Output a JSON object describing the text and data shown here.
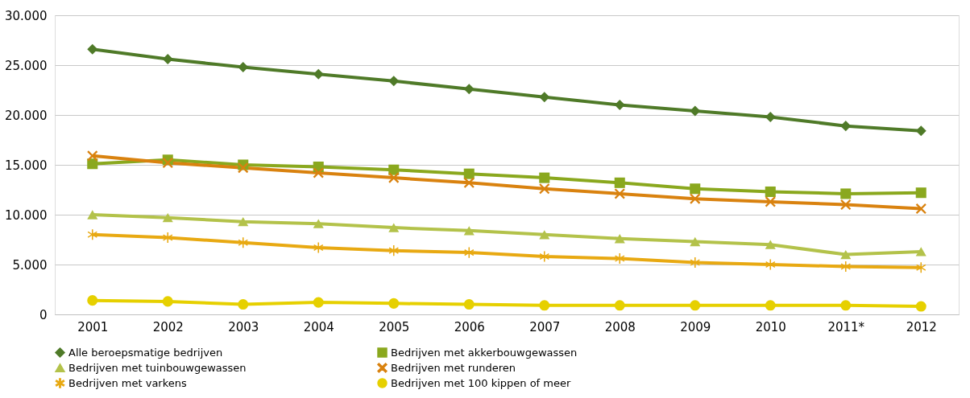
{
  "chart_data": {
    "type": "line",
    "categories": [
      "2001",
      "2002",
      "2003",
      "2004",
      "2005",
      "2006",
      "2007",
      "2008",
      "2009",
      "2010",
      "2011*",
      "2012"
    ],
    "ylim": [
      0,
      30000
    ],
    "yticks": [
      {
        "value": 0,
        "label": "0"
      },
      {
        "value": 5000,
        "label": "5.000"
      },
      {
        "value": 10000,
        "label": "10.000"
      },
      {
        "value": 15000,
        "label": "15.000"
      },
      {
        "value": 20000,
        "label": "20.000"
      },
      {
        "value": 25000,
        "label": "25.000"
      },
      {
        "value": 30000,
        "label": "30.000"
      }
    ],
    "grid": "y",
    "legend": "bottom",
    "line_style": "solid",
    "series": [
      {
        "name": "Alle beroepsmatige bedrijven",
        "color": "#4f7a28",
        "marker": "diamond",
        "values": [
          26600,
          25600,
          24800,
          24100,
          23400,
          22600,
          21800,
          21000,
          20400,
          19800,
          18900,
          18400
        ]
      },
      {
        "name": "Bedrijven met akkerbouwgewassen",
        "color": "#8aa81e",
        "marker": "square",
        "values": [
          15100,
          15500,
          15000,
          14800,
          14500,
          14100,
          13700,
          13200,
          12600,
          12300,
          12100,
          12200
        ]
      },
      {
        "name": "Bedrijven met tuinbouwgewassen",
        "color": "#b3c24a",
        "marker": "triangle",
        "values": [
          10000,
          9700,
          9300,
          9100,
          8700,
          8400,
          8000,
          7600,
          7300,
          7000,
          6000,
          6300
        ]
      },
      {
        "name": "Bedrijven met runderen",
        "color": "#d9820f",
        "marker": "cross",
        "values": [
          15900,
          15200,
          14700,
          14200,
          13700,
          13200,
          12600,
          12100,
          11600,
          11300,
          11000,
          10600
        ]
      },
      {
        "name": "Bedrijven met varkens",
        "color": "#e8a912",
        "marker": "star",
        "values": [
          8000,
          7700,
          7200,
          6700,
          6400,
          6200,
          5800,
          5600,
          5200,
          5000,
          4800,
          4700
        ]
      },
      {
        "name": "Bedrijven met 100 kippen of meer",
        "color": "#e6d000",
        "marker": "circle",
        "values": [
          1400,
          1300,
          1000,
          1200,
          1100,
          1000,
          900,
          900,
          900,
          900,
          900,
          800
        ]
      }
    ]
  }
}
